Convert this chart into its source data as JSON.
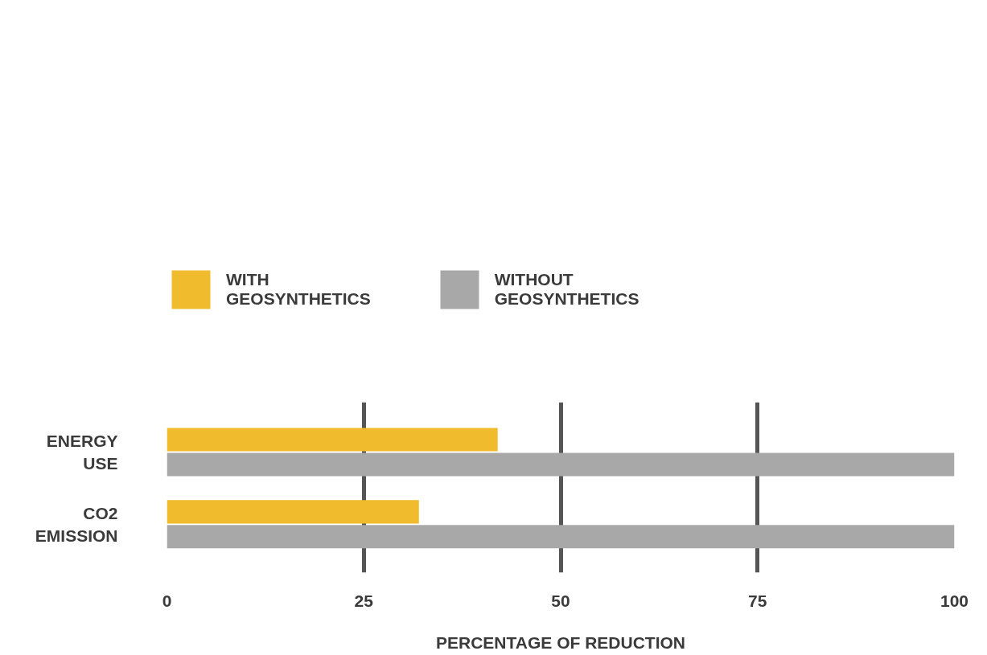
{
  "chart_data": {
    "type": "bar",
    "orientation": "horizontal",
    "categories": [
      "ENERGY USE",
      "CO2 EMISSION"
    ],
    "series": [
      {
        "name": "WITH GEOSYNTHETICS",
        "color": "#f0bc2e",
        "values": [
          42,
          32
        ]
      },
      {
        "name": "WITHOUT GEOSYNTHETICS",
        "color": "#a7a8a7",
        "values": [
          100,
          100
        ]
      }
    ],
    "xlabel": "PERCENTAGE OF REDUCTION",
    "xlim": [
      0,
      100
    ],
    "xticks": [
      0,
      25,
      50,
      75,
      100
    ],
    "grid": "x",
    "legend": "top left"
  }
}
